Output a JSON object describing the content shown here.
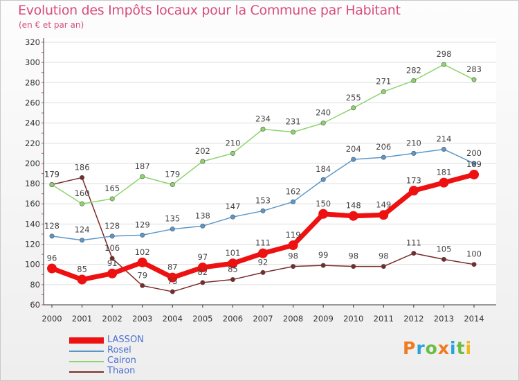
{
  "header": {
    "title": "Evolution des Impôts locaux pour la Commune par Habitant",
    "subtitle": "(en € et par an)"
  },
  "brand": {
    "letters": [
      "P",
      "r",
      "o",
      "x",
      "i",
      "t",
      "i"
    ],
    "colors": [
      "#f07a1e",
      "#2aa3dd",
      "#6cbd45",
      "#f07a1e",
      "#2aa3dd",
      "#6cbd45",
      "#f0b81e"
    ]
  },
  "chart_data": {
    "type": "line",
    "title": "Evolution des Impôts locaux pour la Commune par Habitant",
    "subtitle": "(en € et par an)",
    "xlabel": "",
    "ylabel": "",
    "categories": [
      "2000",
      "2001",
      "2002",
      "2003",
      "2004",
      "2005",
      "2006",
      "2007",
      "2008",
      "2009",
      "2010",
      "2011",
      "2012",
      "2013",
      "2014"
    ],
    "ylim": [
      60,
      320
    ],
    "yticks": [
      "60",
      "80",
      "100",
      "120",
      "140",
      "160",
      "180",
      "200",
      "220",
      "240",
      "260",
      "280",
      "300",
      "320"
    ],
    "grid": "horizontal",
    "legend_position": "bottom-left",
    "series": [
      {
        "name": "Thaon",
        "color": "#7a2a2a",
        "values": [
          179,
          186,
          106,
          79,
          73,
          82,
          85,
          92,
          98,
          99,
          98,
          98,
          111,
          105,
          100
        ],
        "labels": [
          "179",
          "186",
          "106",
          "79",
          "73",
          "82",
          "85",
          "92",
          "98",
          "99",
          "98",
          "98",
          "111",
          "105",
          "100"
        ]
      },
      {
        "name": "Cairon",
        "color": "#8cd46c",
        "values": [
          179,
          160,
          165,
          187,
          179,
          202,
          210,
          234,
          231,
          240,
          255,
          271,
          282,
          298,
          283
        ],
        "labels": [
          "179",
          "160",
          "165",
          "187",
          "179",
          "202",
          "210",
          "234",
          "231",
          "240",
          "255",
          "271",
          "282",
          "298",
          "283"
        ]
      },
      {
        "name": "Rosel",
        "color": "#5b97c9",
        "values": [
          128,
          124,
          128,
          129,
          135,
          138,
          147,
          153,
          162,
          184,
          204,
          206,
          210,
          214,
          200
        ],
        "labels": [
          "128",
          "124",
          "128",
          "129",
          "135",
          "138",
          "147",
          "153",
          "162",
          "184",
          "204",
          "206",
          "210",
          "214",
          "200"
        ]
      },
      {
        "name": "LASSON",
        "color": "#ee1111",
        "values": [
          96,
          85,
          91,
          102,
          87,
          97,
          101,
          111,
          119,
          150,
          148,
          149,
          173,
          181,
          189
        ],
        "labels": [
          "96",
          "85",
          "91",
          "102",
          "87",
          "97",
          "101",
          "111",
          "119",
          "150",
          "148",
          "149",
          "173",
          "181",
          "189"
        ]
      }
    ],
    "legend_order": [
      "LASSON",
      "Rosel",
      "Cairon",
      "Thaon"
    ]
  }
}
